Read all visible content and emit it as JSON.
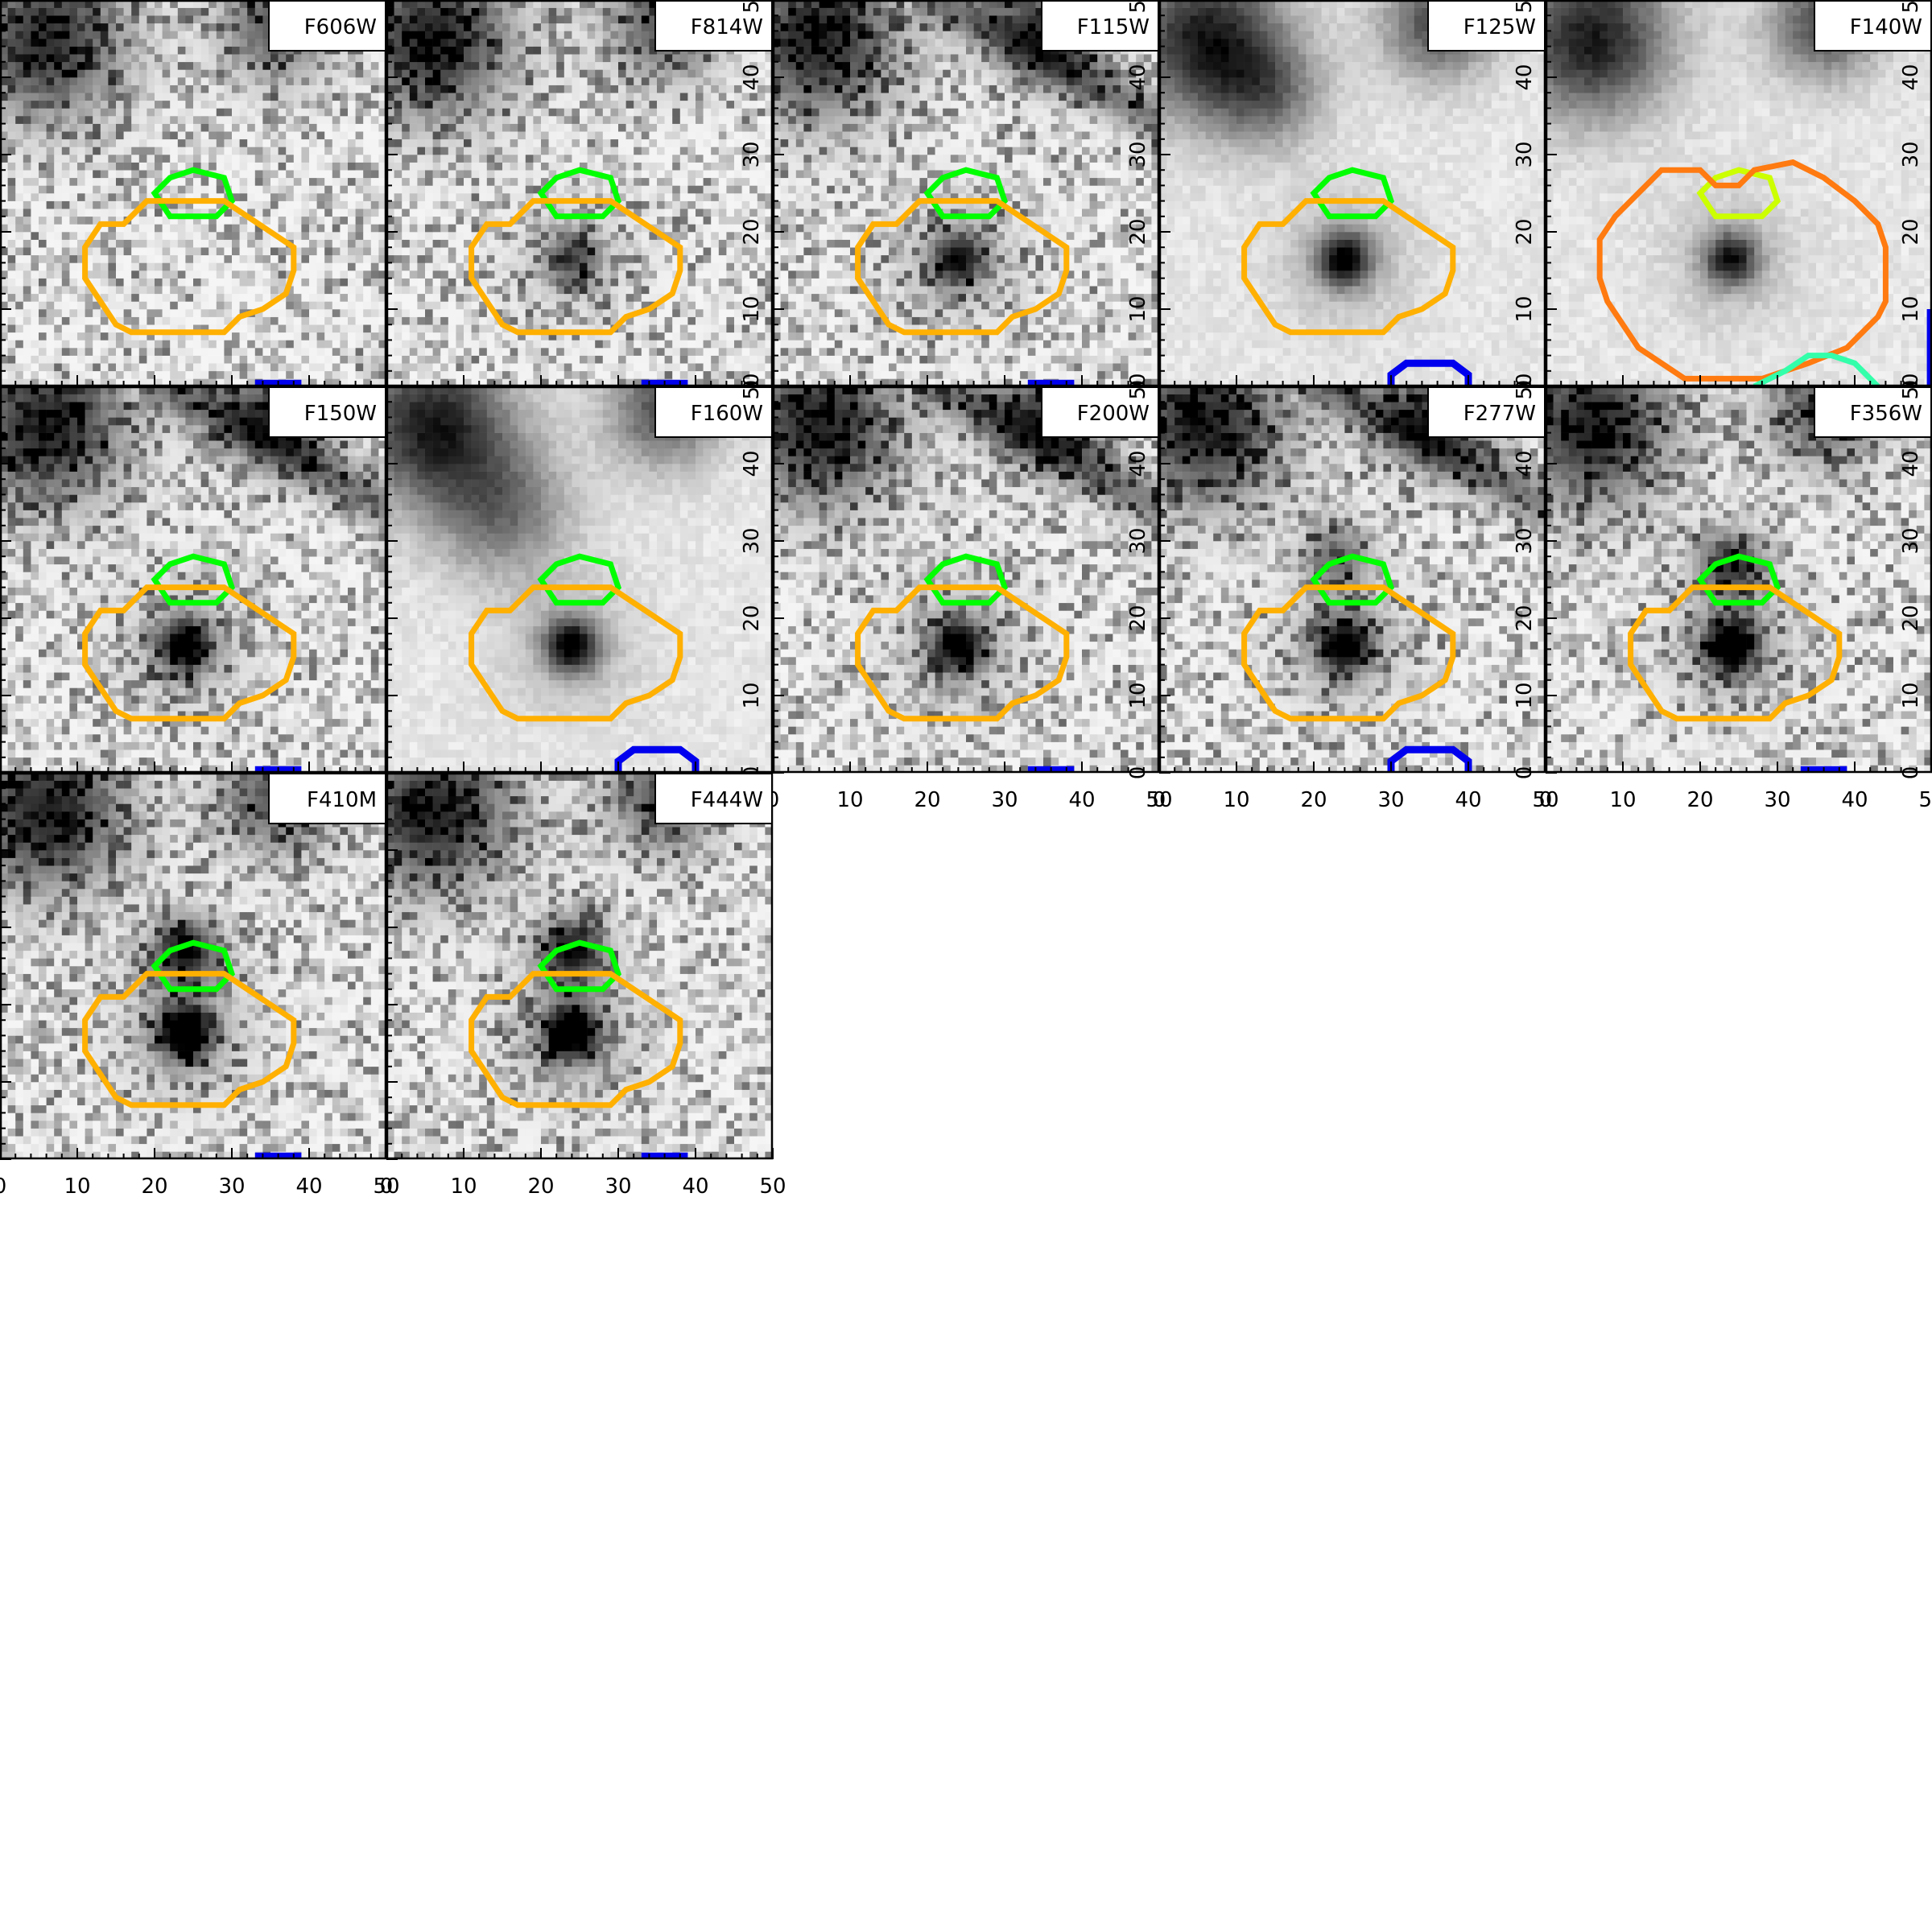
{
  "figure": {
    "panels": [
      {
        "filter": "F606W",
        "x_ticks_shown": false,
        "y_ticks_shown": false,
        "source_visible": false,
        "bg_seed": 11,
        "clumps": [
          [
            6,
            45,
            7,
            0.75
          ],
          [
            36,
            47,
            5,
            0.6
          ]
        ],
        "streak": false,
        "contours": [
          {
            "shape": "blob_small",
            "color": "#00ff00"
          },
          {
            "shape": "blob_large",
            "color": "#ffb000"
          }
        ],
        "blue_marks": [
          {
            "shape": "bar"
          }
        ]
      },
      {
        "filter": "F814W",
        "x_ticks_shown": false,
        "y_ticks_shown": true,
        "source_visible": true,
        "source_strength": 0.55,
        "bg_seed": 23,
        "clumps": [
          [
            6,
            45,
            7,
            0.8
          ],
          [
            36,
            47,
            5,
            0.6
          ]
        ],
        "streak": false,
        "contours": [
          {
            "shape": "blob_small",
            "color": "#00ff00"
          },
          {
            "shape": "blob_large",
            "color": "#ffb000"
          }
        ],
        "blue_marks": [
          {
            "shape": "bar"
          }
        ]
      },
      {
        "filter": "F115W",
        "x_ticks_shown": false,
        "y_ticks_shown": true,
        "source_visible": true,
        "source_strength": 0.75,
        "bg_seed": 37,
        "clumps": [
          [
            6,
            45,
            7,
            0.8
          ],
          [
            36,
            47,
            5,
            0.6
          ]
        ],
        "streak": true,
        "contours": [
          {
            "shape": "blob_small",
            "color": "#00ff00"
          },
          {
            "shape": "blob_large",
            "color": "#ffb000"
          }
        ],
        "blue_marks": [
          {
            "shape": "bar"
          }
        ]
      },
      {
        "filter": "F125W",
        "x_ticks_shown": false,
        "y_ticks_shown": true,
        "source_visible": true,
        "source_strength": 0.8,
        "bg_seed": 41,
        "smooth": true,
        "clumps": [
          [
            6,
            45,
            7,
            0.8
          ],
          [
            36,
            47,
            5,
            0.6
          ],
          [
            14,
            38,
            5,
            0.4
          ]
        ],
        "streak": false,
        "contours": [
          {
            "shape": "blob_small",
            "color": "#00ff00"
          },
          {
            "shape": "blob_large",
            "color": "#ffb000"
          }
        ],
        "blue_marks": [
          {
            "shape": "cap"
          }
        ]
      },
      {
        "filter": "F140W",
        "x_ticks_shown": false,
        "y_ticks_shown": true,
        "source_visible": true,
        "source_strength": 0.7,
        "bg_seed": 53,
        "smooth": true,
        "clumps": [
          [
            6,
            45,
            7,
            0.8
          ],
          [
            36,
            47,
            5,
            0.6
          ]
        ],
        "streak": false,
        "contours": [
          {
            "shape": "blob_small",
            "color": "#ccff00"
          },
          {
            "shape": "heart",
            "color": "#ff7a10"
          },
          {
            "shape": "mound",
            "color": "#33ffaa"
          }
        ],
        "blue_marks": [
          {
            "shape": "edge"
          }
        ]
      },
      {
        "filter": "F150W",
        "x_ticks_shown": false,
        "y_ticks_shown": false,
        "source_visible": true,
        "source_strength": 0.85,
        "bg_seed": 61,
        "clumps": [
          [
            6,
            45,
            7,
            0.8
          ],
          [
            36,
            47,
            5,
            0.6
          ]
        ],
        "streak": true,
        "contours": [
          {
            "shape": "blob_small",
            "color": "#00ff00"
          },
          {
            "shape": "blob_large",
            "color": "#ffb000"
          }
        ],
        "blue_marks": [
          {
            "shape": "bar"
          }
        ]
      },
      {
        "filter": "F160W",
        "x_ticks_shown": false,
        "y_ticks_shown": true,
        "source_visible": true,
        "source_strength": 0.8,
        "bg_seed": 71,
        "smooth": true,
        "clumps": [
          [
            6,
            45,
            7,
            0.8
          ],
          [
            36,
            47,
            5,
            0.6
          ],
          [
            15,
            34,
            6,
            0.45
          ]
        ],
        "streak": false,
        "contours": [
          {
            "shape": "blob_small",
            "color": "#00ff00"
          },
          {
            "shape": "blob_large",
            "color": "#ffb000"
          }
        ],
        "blue_marks": [
          {
            "shape": "cap"
          }
        ]
      },
      {
        "filter": "F200W",
        "x_ticks_shown": true,
        "y_ticks_shown": true,
        "source_visible": true,
        "source_strength": 0.85,
        "bg_seed": 83,
        "clumps": [
          [
            6,
            45,
            7,
            0.8
          ],
          [
            36,
            47,
            5,
            0.6
          ]
        ],
        "streak": true,
        "contours": [
          {
            "shape": "blob_small",
            "color": "#00ff00"
          },
          {
            "shape": "blob_large",
            "color": "#ffb000"
          }
        ],
        "blue_marks": [
          {
            "shape": "bar"
          }
        ]
      },
      {
        "filter": "F277W",
        "x_ticks_shown": true,
        "y_ticks_shown": true,
        "source_visible": true,
        "source_strength": 0.9,
        "bg_seed": 97,
        "clumps": [
          [
            6,
            45,
            7,
            0.8
          ],
          [
            36,
            47,
            5,
            0.6
          ],
          [
            23,
            28,
            3,
            0.5
          ]
        ],
        "streak": true,
        "contours": [
          {
            "shape": "blob_small",
            "color": "#00ff00"
          },
          {
            "shape": "blob_large",
            "color": "#ffb000"
          }
        ],
        "blue_marks": [
          {
            "shape": "cap"
          }
        ]
      },
      {
        "filter": "F356W",
        "x_ticks_shown": true,
        "y_ticks_shown": true,
        "source_visible": true,
        "source_strength": 0.95,
        "bg_seed": 101,
        "clumps": [
          [
            6,
            45,
            7,
            0.8
          ],
          [
            36,
            47,
            5,
            0.6
          ],
          [
            24,
            27,
            3,
            0.7
          ]
        ],
        "streak": false,
        "contours": [
          {
            "shape": "blob_small",
            "color": "#00ff00"
          },
          {
            "shape": "blob_large",
            "color": "#ffb000"
          }
        ],
        "blue_marks": [
          {
            "shape": "bar"
          }
        ]
      },
      {
        "filter": "F410M",
        "x_ticks_shown": true,
        "y_ticks_shown": false,
        "source_visible": true,
        "source_strength": 1.0,
        "bg_seed": 113,
        "clumps": [
          [
            6,
            45,
            7,
            0.8
          ],
          [
            36,
            47,
            5,
            0.6
          ],
          [
            24,
            27,
            3,
            0.85
          ]
        ],
        "streak": false,
        "contours": [
          {
            "shape": "blob_small",
            "color": "#00ff00"
          },
          {
            "shape": "blob_large",
            "color": "#ffb000"
          }
        ],
        "blue_marks": [
          {
            "shape": "bar"
          }
        ]
      },
      {
        "filter": "F444W",
        "x_ticks_shown": true,
        "y_ticks_shown": false,
        "source_visible": true,
        "source_strength": 1.0,
        "bg_seed": 127,
        "clumps": [
          [
            6,
            45,
            7,
            0.8
          ],
          [
            36,
            47,
            5,
            0.6
          ],
          [
            24,
            27,
            3,
            0.85
          ]
        ],
        "streak": false,
        "contours": [
          {
            "shape": "blob_small",
            "color": "#00ff00"
          },
          {
            "shape": "blob_large",
            "color": "#ffb000"
          }
        ],
        "blue_marks": [
          {
            "shape": "bar"
          }
        ]
      }
    ],
    "axis": {
      "xlim": [
        0,
        50
      ],
      "ylim": [
        0,
        50
      ],
      "x_tick_labels": [
        "0",
        "10",
        "20",
        "30",
        "40",
        "50"
      ],
      "y_tick_labels": [
        "0",
        "10",
        "20",
        "30",
        "40",
        "50"
      ]
    },
    "colors": {
      "blue_mark": "#0000ee",
      "axes": "#000000"
    }
  }
}
